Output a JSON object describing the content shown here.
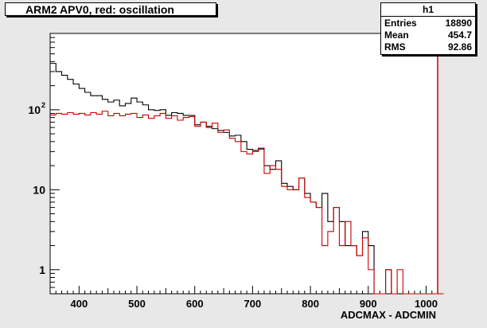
{
  "chart_data": {
    "type": "histogram",
    "title": "ARM2 APV0, red: oscillation",
    "xlabel": "ADCMAX - ADCMIN",
    "ylabel": "",
    "yscale": "log",
    "xlim": [
      350,
      1020
    ],
    "ylim": [
      0.5,
      900
    ],
    "bin_width": 10,
    "x_ticks": [
      400,
      500,
      600,
      700,
      800,
      900,
      1000
    ],
    "y_ticks": [
      {
        "value": 1,
        "label": "1"
      },
      {
        "value": 10,
        "label": "10"
      },
      {
        "value": 100,
        "label": "10",
        "exponent": "2"
      }
    ],
    "stats": {
      "name": "h1",
      "rows": [
        {
          "label": "Entries",
          "value": "18890"
        },
        {
          "label": "Mean",
          "value": "454.7"
        },
        {
          "label": "RMS",
          "value": "92.86"
        }
      ]
    },
    "series": [
      {
        "color": "#000000",
        "bins_start": 350,
        "values": [
          380,
          300,
          270,
          240,
          210,
          185,
          165,
          150,
          150,
          135,
          125,
          132,
          112,
          120,
          140,
          125,
          115,
          100,
          98,
          100,
          85,
          92,
          90,
          85,
          85,
          65,
          70,
          62,
          58,
          55,
          52,
          47,
          48,
          40,
          32,
          31,
          33,
          20,
          18,
          23,
          12,
          11,
          10,
          14,
          9,
          7,
          6,
          9,
          4,
          6,
          4,
          2,
          2,
          1.5,
          3,
          2,
          0.4,
          0.4,
          1,
          0.4,
          0.4,
          0.4,
          0.4,
          0.4,
          0.4,
          0.4,
          0.4,
          0.4,
          0.4
        ]
      },
      {
        "color": "#cc0000",
        "bins_start": 350,
        "values": [
          86,
          90,
          88,
          92,
          88,
          90,
          86,
          92,
          88,
          96,
          84,
          90,
          84,
          88,
          90,
          80,
          86,
          78,
          84,
          90,
          78,
          84,
          74,
          80,
          82,
          62,
          70,
          60,
          68,
          52,
          56,
          44,
          40,
          30,
          28,
          30,
          32,
          16,
          20,
          18,
          11,
          10,
          10,
          14,
          8,
          7,
          6,
          2,
          3,
          6,
          2,
          4,
          2,
          1.5,
          2.5,
          1,
          0.4,
          0.4,
          1,
          0.4,
          1,
          0.4,
          0.4,
          0.4,
          0.4,
          0.4,
          0.4,
          0.4,
          0.4
        ]
      }
    ]
  }
}
